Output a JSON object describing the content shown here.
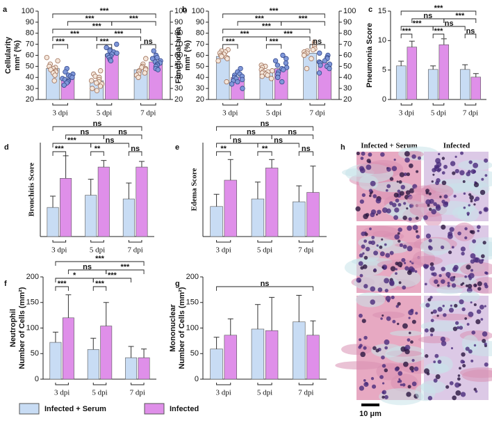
{
  "chart_data": [
    {
      "type": "bar",
      "label": "a",
      "ylabel": [
        "Cellularity",
        "mm² (%)"
      ],
      "categories": [
        "3 dpi",
        "5 dpi",
        "7 dpi"
      ],
      "series": [
        {
          "values": [
            48,
            37,
            47
          ],
          "points": [
            [
              58,
              55,
              52,
              50,
              49,
              48,
              47,
              46,
              45,
              44,
              42,
              37
            ],
            [
              46,
              43,
              41,
              40,
              38,
              37,
              36,
              35,
              34,
              32,
              30,
              28
            ],
            [
              57,
              52,
              50,
              49,
              48,
              47,
              46,
              45,
              44,
              43,
              42,
              40
            ]
          ]
        },
        {
          "values": [
            39,
            61,
            54
          ],
          "points": [
            [
              48,
              45,
              43,
              42,
              41,
              40,
              39,
              38,
              37,
              36,
              35,
              33
            ],
            [
              70,
              67,
              65,
              64,
              63,
              62,
              61,
              60,
              59,
              58,
              56,
              55
            ],
            [
              64,
              60,
              58,
              57,
              55,
              54,
              53,
              52,
              51,
              50,
              48,
              47
            ]
          ]
        }
      ],
      "point_colors": [
        "#f4e6da",
        "#7f97d9"
      ],
      "ylim": [
        20,
        100
      ],
      "yticks": [
        20,
        30,
        40,
        50,
        60,
        70,
        80,
        90,
        100
      ],
      "y2lim": [
        20,
        100
      ],
      "y2ticks": [
        20,
        30,
        40,
        50,
        60,
        70,
        80,
        90,
        100
      ],
      "annotations": [
        "***",
        "***",
        "***",
        "***",
        "***",
        "***",
        "***",
        "***",
        "ns"
      ]
    },
    {
      "type": "bar",
      "label": "b",
      "ylabel": [
        "Functional area",
        "mm² (%)"
      ],
      "categories": [
        "3 dpi",
        "5 dpi",
        "7 dpi"
      ],
      "series": [
        {
          "values": [
            59,
            45,
            62
          ],
          "points": [
            [
              65,
              64,
              63,
              62,
              61,
              60,
              60,
              59,
              58,
              57,
              55,
              36
            ],
            [
              51,
              50,
              49,
              47,
              46,
              45,
              45,
              44,
              43,
              42,
              41,
              39
            ],
            [
              72,
              70,
              68,
              66,
              65,
              64,
              63,
              62,
              61,
              60,
              57,
              48
            ]
          ]
        },
        {
          "values": [
            40,
            48,
            53
          ],
          "points": [
            [
              48,
              45,
              43,
              42,
              41,
              40,
              39,
              38,
              37,
              36,
              34,
              30
            ],
            [
              60,
              57,
              55,
              53,
              51,
              49,
              48,
              47,
              45,
              43,
              40,
              36
            ],
            [
              62,
              60,
              58,
              57,
              55,
              54,
              53,
              52,
              51,
              50,
              48,
              44
            ]
          ]
        }
      ],
      "point_colors": [
        "#f4e6da",
        "#7f97d9"
      ],
      "ylim": [
        20,
        100
      ],
      "yticks": [
        20,
        30,
        40,
        50,
        60,
        70,
        80,
        90,
        100
      ],
      "y2lim": [
        20,
        100
      ],
      "y2ticks": [
        20,
        30,
        40,
        50,
        60,
        70,
        80,
        90,
        100
      ],
      "annotations": [
        "***",
        "***",
        "***",
        "***",
        "***",
        "***",
        "***",
        "***",
        "ns"
      ]
    },
    {
      "type": "bar",
      "label": "c",
      "ylabel": [
        "Pneumonia Score"
      ],
      "categories": [
        "3 dpi",
        "5 dpi",
        "7 dpi"
      ],
      "series": [
        {
          "values": [
            5.7,
            5.1,
            5.1
          ],
          "errors": [
            0.8,
            0.6,
            0.8
          ]
        },
        {
          "values": [
            8.9,
            9.3,
            3.8
          ],
          "errors": [
            1.0,
            1.0,
            0.6
          ]
        }
      ],
      "ylim": [
        0,
        15
      ],
      "yticks": [
        0,
        5,
        10,
        15
      ],
      "annotations": [
        "***",
        "ns",
        "***",
        "***",
        "ns",
        "***",
        "***",
        "ns"
      ]
    },
    {
      "type": "bar",
      "label": "d",
      "ylabel": [
        "Bronchitis Score"
      ],
      "categories": [
        "3 dpi",
        "5 dpi",
        "7 dpi"
      ],
      "series": [
        {
          "values": [
            1.55,
            2.2,
            2.0
          ],
          "errors": [
            0.6,
            0.85,
            0.85
          ]
        },
        {
          "values": [
            3.1,
            3.7,
            3.7
          ],
          "errors": [
            1.2,
            0.35,
            0.3
          ]
        }
      ],
      "ylim": [
        0,
        5
      ],
      "annotations": [
        "ns",
        "ns",
        "ns",
        "***",
        "ns",
        "***",
        "**",
        "ns"
      ]
    },
    {
      "type": "bar",
      "label": "e",
      "ylabel": [
        "Edema Score"
      ],
      "categories": [
        "3 dpi",
        "5 dpi",
        "7 dpi"
      ],
      "series": [
        {
          "values": [
            1.6,
            2.0,
            1.85
          ],
          "errors": [
            0.65,
            0.9,
            0.85
          ]
        },
        {
          "values": [
            3.0,
            3.65,
            2.35
          ],
          "errors": [
            1.1,
            0.45,
            1.4
          ]
        }
      ],
      "ylim": [
        0,
        5
      ],
      "annotations": [
        "ns",
        "ns",
        "ns",
        "ns",
        "ns",
        "**",
        "**",
        "ns"
      ]
    },
    {
      "type": "bar",
      "label": "f",
      "ylabel": [
        "Neutrophil",
        "Number of Cells (mm²)"
      ],
      "categories": [
        "3 dpi",
        "5 dpi",
        "7 dpi"
      ],
      "series": [
        {
          "values": [
            72,
            58,
            42
          ],
          "errors": [
            20,
            22,
            22
          ]
        },
        {
          "values": [
            120,
            104,
            42
          ],
          "errors": [
            45,
            46,
            17
          ]
        }
      ],
      "ylim": [
        0,
        200
      ],
      "yticks": [
        0,
        50,
        100,
        150,
        200
      ],
      "annotations": [
        "***",
        "ns",
        "***",
        "*",
        "***",
        "***",
        "***"
      ]
    },
    {
      "type": "bar",
      "label": "g",
      "ylabel": [
        "Mononuclear",
        "Number of Cells (mm²)"
      ],
      "categories": [
        "3 dpi",
        "5 dpi",
        "7 dpi"
      ],
      "series": [
        {
          "values": [
            59,
            98,
            112
          ],
          "errors": [
            23,
            48,
            52
          ]
        },
        {
          "values": [
            86,
            95,
            86
          ],
          "errors": [
            32,
            65,
            28
          ]
        }
      ],
      "ylim": [
        0,
        200
      ],
      "yticks": [
        0,
        50,
        100,
        150,
        200
      ],
      "annotations": [
        "ns"
      ]
    }
  ],
  "legend": [
    {
      "name": "Infected + Serum",
      "color": "#c8dcf4"
    },
    {
      "name": "Infected",
      "color": "#df8fe9"
    }
  ],
  "micrographs": {
    "label": "h",
    "columns": [
      "Infected + Serum",
      "Infected"
    ],
    "scale_bar": "10 μm"
  }
}
